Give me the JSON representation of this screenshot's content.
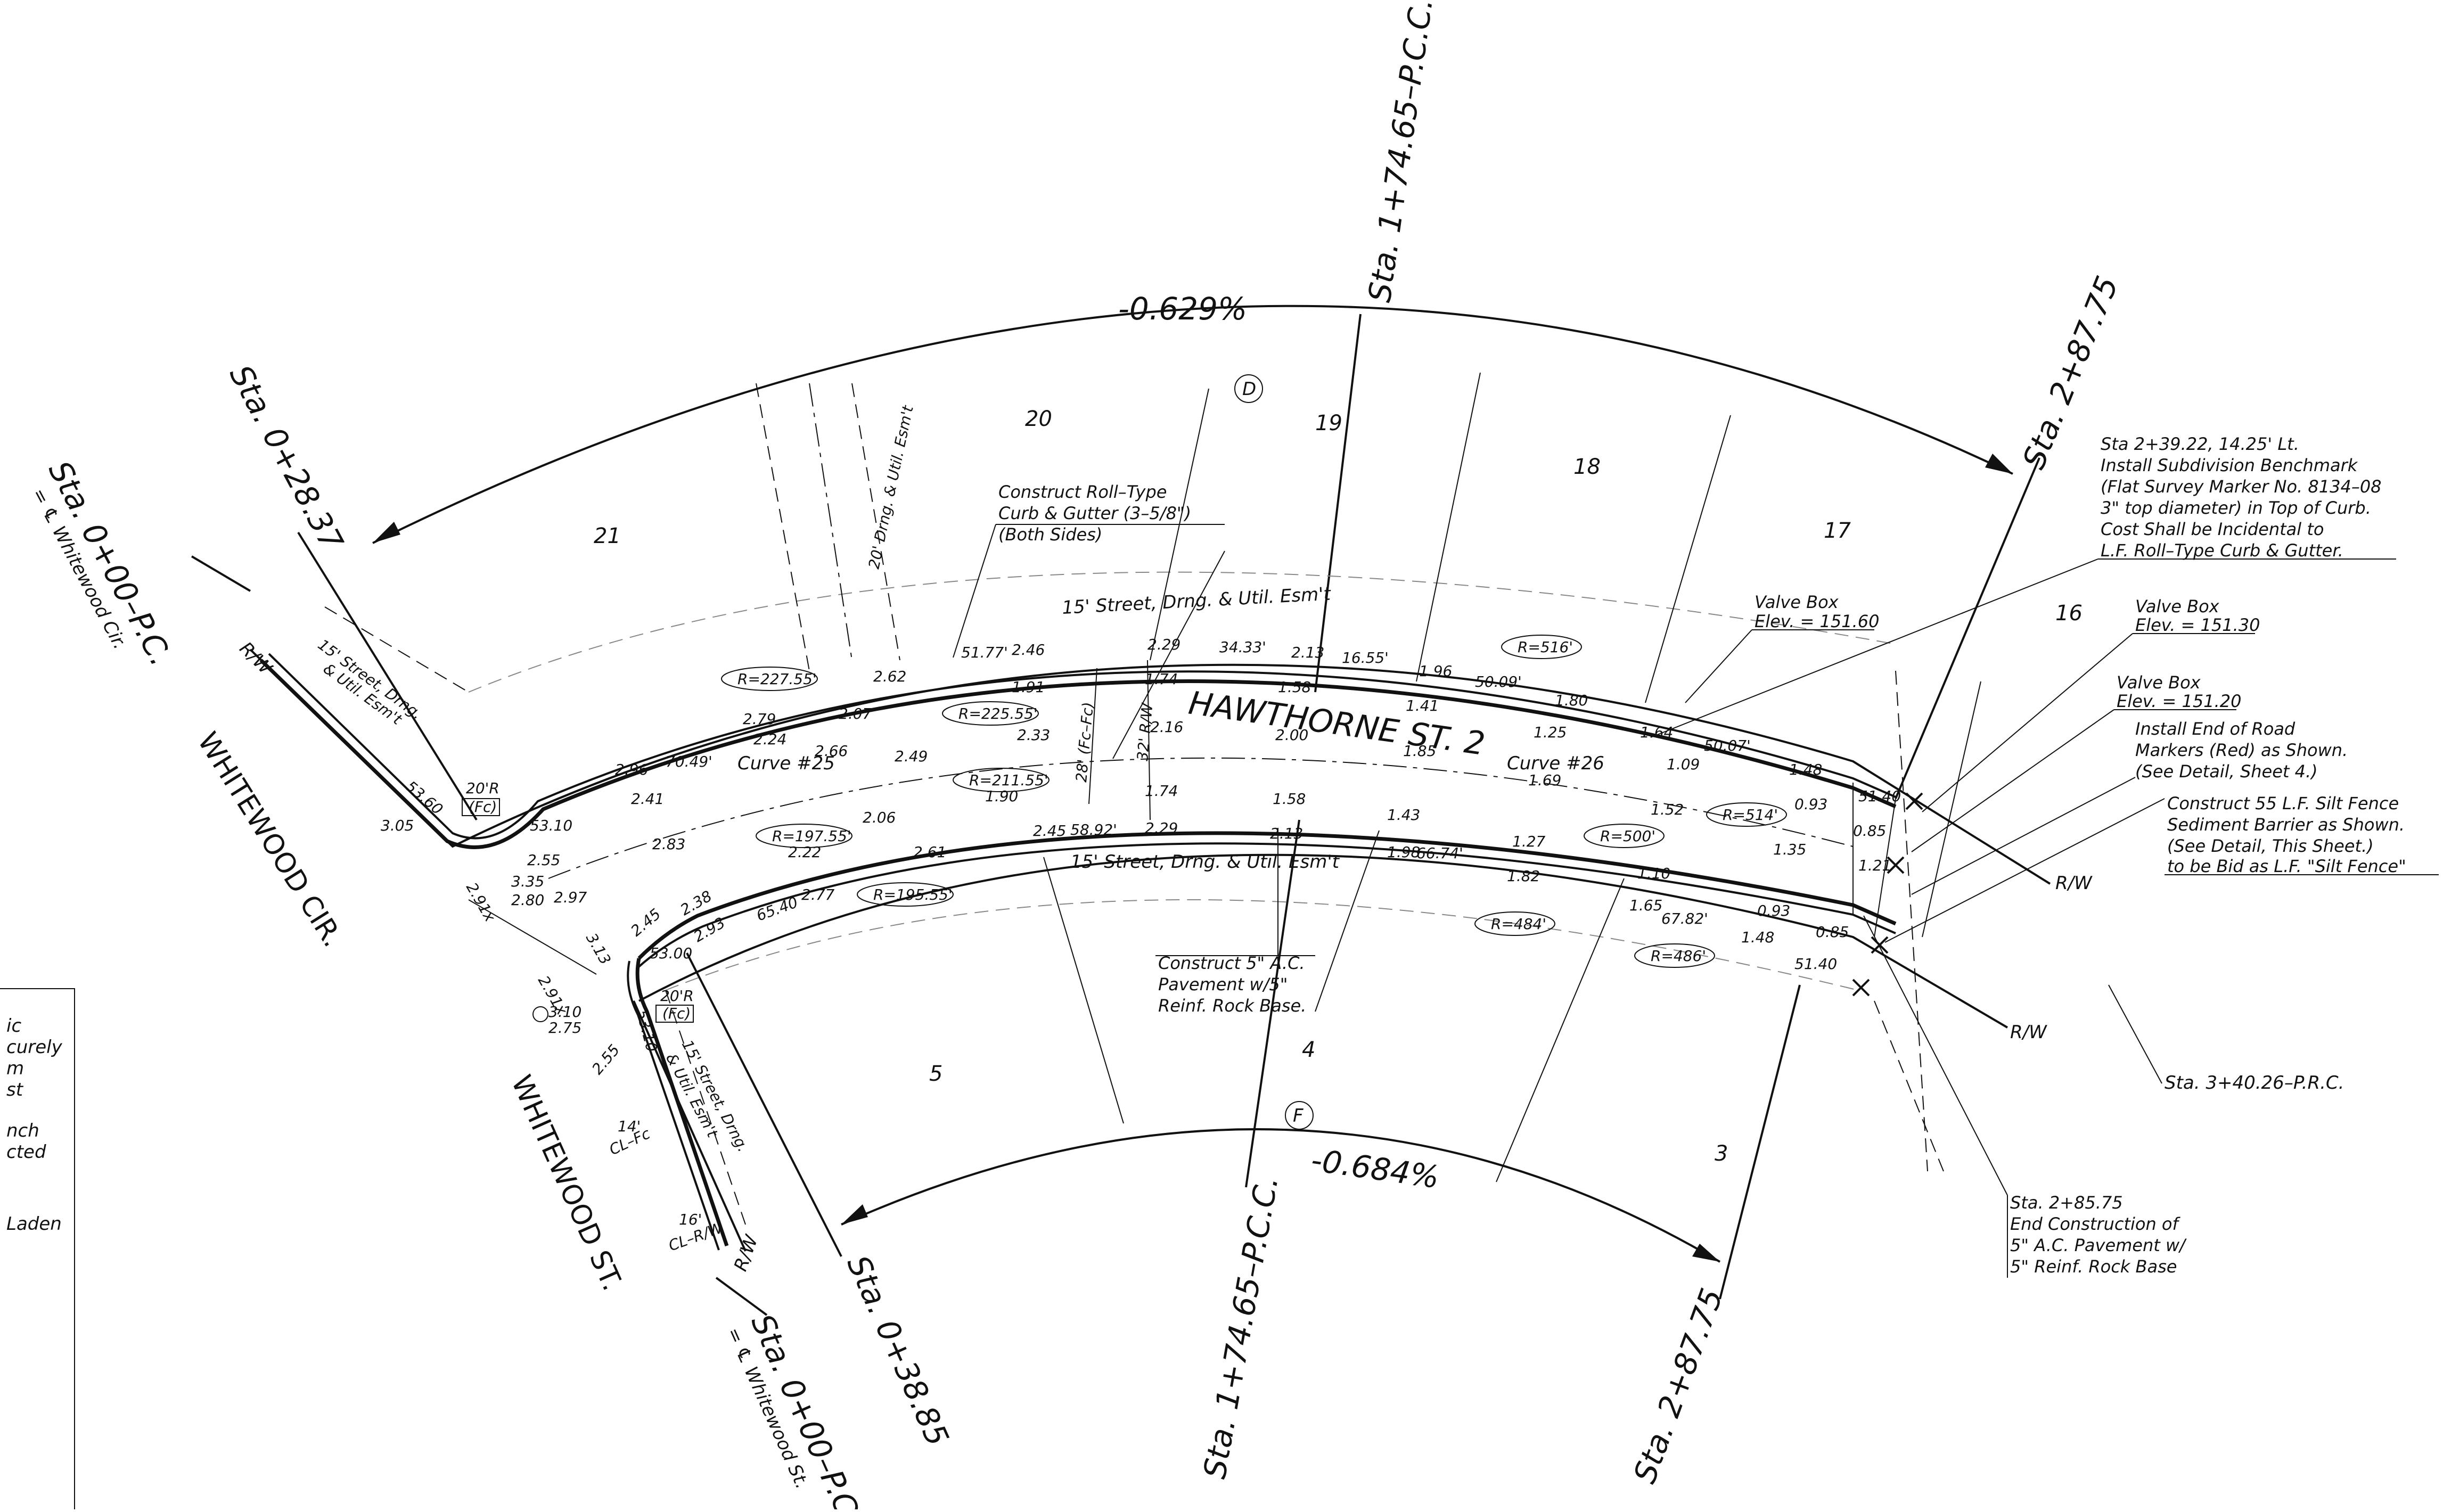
{
  "streets": {
    "main": "HAWTHORNE ST. 2",
    "cross_circle": "WHITEWOOD CIR.",
    "cross_street": "WHITEWOOD ST."
  },
  "stations": {
    "start_cir": "Sta. 0+00–P.C.",
    "start_cir_sub": "= ℄ Whitewood Cir.",
    "start_st": "Sta. 0+00–P.C.",
    "start_st_sub": "= ℄ Whitewood St.",
    "sta_028": "Sta. 0+28.37",
    "sta_038": "Sta. 0+38.85",
    "sta_174_top": "Sta. 1+74.65–P.C.C.",
    "sta_174_bot": "Sta. 1+74.65–P.C.C.",
    "sta_287_top": "Sta. 2+87.75",
    "sta_287_bot": "Sta. 2+87.75",
    "sta_340": "Sta. 3+40.26–P.R.C."
  },
  "grades": {
    "top": "-0.629%",
    "bottom": "-0.684%"
  },
  "lots": [
    "21",
    "20",
    "19",
    "18",
    "17",
    "16",
    "5",
    "4",
    "3"
  ],
  "markers": {
    "top": "D",
    "bottom": "F"
  },
  "curves": {
    "c25": "Curve #25",
    "c26": "Curve #26",
    "radii": [
      "R=227.55'",
      "R=225.55'",
      "R=211.55'",
      "R=197.55'",
      "R=195.55'",
      "R=516'",
      "R=500'",
      "R=514'",
      "R=484'",
      "R=486'"
    ]
  },
  "easements": {
    "top": "15' Street, Drng. & Util. Esm't",
    "bottom": "15' Street, Drng. & Util. Esm't",
    "lot20": "20' Drng. & Util. Esm't",
    "left_top_1": "15' Street, Drng.",
    "left_top_2": "& Util. Esm't",
    "left_bot_1": "15' Street, Drng.",
    "left_bot_2": "& Util. Esm't"
  },
  "callouts": {
    "curb": [
      "Construct Roll–Type",
      "Curb & Gutter (3–5/8\")",
      "(Both Sides)"
    ],
    "pavement": [
      "Construct 5\" A.C.",
      "Pavement w/5\"",
      "Reinf. Rock Base."
    ],
    "benchmark": [
      "Sta 2+39.22, 14.25' Lt.",
      "Install Subdivision Benchmark",
      "(Flat Survey Marker No. 8134–08",
      "3\" top diameter) in Top of Curb.",
      "Cost Shall be Incidental to",
      "L.F. Roll–Type Curb & Gutter."
    ],
    "valve1": [
      "Valve Box",
      "Elev. = 151.60"
    ],
    "valve2": [
      "Valve Box",
      "Elev. = 151.30"
    ],
    "valve3": [
      "Valve Box",
      "Elev. = 151.20"
    ],
    "markers": [
      "Install End of Road",
      "Markers (Red) as Shown.",
      "(See Detail, Sheet 4.)"
    ],
    "silt": [
      "Construct 55 L.F. Silt Fence",
      "Sediment Barrier as Shown.",
      "(See Detail, This Sheet.)",
      "to be Bid as L.F. \"Silt Fence\""
    ],
    "end": [
      "Sta. 2+85.75",
      "End Construction of",
      "5\" A.C. Pavement w/",
      "5\" Reinf. Rock Base"
    ]
  },
  "legend_fragments": [
    "ic",
    "curely",
    "m",
    "st",
    "nch",
    "cted",
    "Laden"
  ],
  "labels": {
    "rw": "R/W",
    "fc_top": "20'R",
    "fc_top2": "(Fc)",
    "fc_bot": "20'R",
    "fc_bot2": "(Fc)",
    "clfc": "14'",
    "clfc_lbl": "CL–Fc",
    "clrw": "16'",
    "clrw_lbl": "CL–R/W",
    "rw_dim": "32' R/W",
    "fcfc_dim": "28' (Fc–Fc)"
  },
  "spot_elevations": {
    "top_curb": [
      "51.77'",
      "2.46",
      "2.29",
      "34.33'",
      "2.13",
      "16.55'",
      "1.96",
      "50.09'",
      "1.80",
      "1.64",
      "50.07'",
      "1.48",
      "51.40"
    ],
    "top_inner": [
      "2.62",
      "2.79",
      "2.07",
      "1.91",
      "1.74",
      "1.58",
      "1.41",
      "1.25",
      "1.09",
      "0.93",
      "0.85"
    ],
    "centerline": [
      "2.66",
      "2.49",
      "2.33",
      "2.16",
      "2.00",
      "1.85",
      "1.69",
      "1.52",
      "1.35",
      "1.21"
    ],
    "bottom_curb": [
      "2.45",
      "58.92'",
      "2.29",
      "2.13",
      "1.98",
      "66.74'",
      "1.82",
      "1.65",
      "67.82'",
      "1.48",
      "51.40"
    ],
    "bottom_inner": [
      "1.90",
      "2.06",
      "2.22",
      "2.61",
      "1.74",
      "1.58",
      "1.43",
      "1.27",
      "1.10",
      "0.93",
      "0.85"
    ],
    "left": [
      "2.96",
      "70.49'",
      "2.24",
      "2.41",
      "2.83",
      "2.97",
      "53.10",
      "3.05",
      "2.55",
      "3.35",
      "2.80",
      "3.13",
      "2.91x",
      "53.60",
      "2.38",
      "65.40",
      "2.77",
      "2.45",
      "53.00",
      "2.93",
      "3.10",
      "2.75",
      "53.10",
      "2.55",
      "2.91x"
    ]
  }
}
